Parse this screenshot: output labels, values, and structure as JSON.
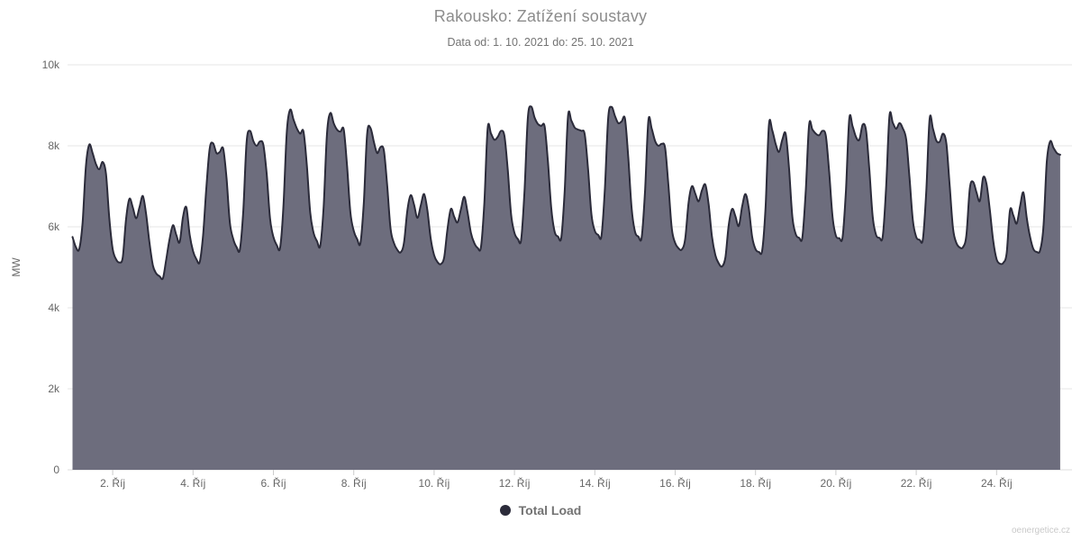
{
  "watermark": "oenergetice.cz",
  "chart_data": {
    "type": "area",
    "title": "Rakousko: Zatížení soustavy",
    "subtitle": "Data od: 1. 10. 2021 do: 25. 10. 2021",
    "xlabel": "",
    "ylabel": "MW",
    "ylim": [
      0,
      10000
    ],
    "grid": "horizontal",
    "colors": {
      "grid_line": "#e6e6e6",
      "axis_line": "#dcdcdc",
      "tick_mark": "#cccccc",
      "axis_label": "#666666",
      "area_fill": "#6d6d7d",
      "series_line": "#2b2b3a"
    },
    "yticks": [
      {
        "value": 0,
        "label": "0"
      },
      {
        "value": 2000,
        "label": "2k"
      },
      {
        "value": 4000,
        "label": "4k"
      },
      {
        "value": 6000,
        "label": "6k"
      },
      {
        "value": 8000,
        "label": "8k"
      },
      {
        "value": 10000,
        "label": "10k"
      }
    ],
    "xticks": [
      {
        "hour": 24,
        "label": "2. Říj"
      },
      {
        "hour": 72,
        "label": "4. Říj"
      },
      {
        "hour": 120,
        "label": "6. Říj"
      },
      {
        "hour": 168,
        "label": "8. Říj"
      },
      {
        "hour": 216,
        "label": "10. Říj"
      },
      {
        "hour": 264,
        "label": "12. Říj"
      },
      {
        "hour": 312,
        "label": "14. Říj"
      },
      {
        "hour": 360,
        "label": "16. Říj"
      },
      {
        "hour": 408,
        "label": "18. Říj"
      },
      {
        "hour": 456,
        "label": "20. Říj"
      },
      {
        "hour": 504,
        "label": "22. Říj"
      },
      {
        "hour": 552,
        "label": "24. Říj"
      }
    ],
    "legend": {
      "position": "bottom",
      "items": [
        {
          "label": "Total Load",
          "color": "#2b2b3a"
        }
      ]
    },
    "series": [
      {
        "name": "Total Load",
        "unit": "MW",
        "start": "1. 10. 2021 00:00",
        "end": "25. 10. 2021 14:00",
        "start_hour": 0,
        "interval_hours": 2,
        "color": "#2b2b3a",
        "fill_color": "#6d6d7d",
        "values": [
          5750,
          5500,
          5450,
          6100,
          7500,
          8030,
          7820,
          7550,
          7420,
          7600,
          7300,
          6200,
          5450,
          5200,
          5120,
          5250,
          6200,
          6690,
          6480,
          6210,
          6480,
          6760,
          6300,
          5600,
          5050,
          4850,
          4780,
          4730,
          5200,
          5700,
          6040,
          5800,
          5620,
          6250,
          6480,
          5800,
          5400,
          5200,
          5130,
          5800,
          7000,
          7950,
          8060,
          7820,
          7850,
          7930,
          7200,
          6100,
          5700,
          5500,
          5440,
          6400,
          8100,
          8370,
          8120,
          8000,
          8110,
          8020,
          7300,
          6200,
          5750,
          5550,
          5480,
          6500,
          8350,
          8890,
          8650,
          8430,
          8300,
          8350,
          7500,
          6350,
          5850,
          5650,
          5530,
          6500,
          8300,
          8810,
          8560,
          8400,
          8350,
          8400,
          7500,
          6350,
          5900,
          5700,
          5600,
          6600,
          8300,
          8440,
          8100,
          7820,
          7970,
          7880,
          7000,
          5950,
          5600,
          5430,
          5370,
          5600,
          6400,
          6780,
          6550,
          6220,
          6520,
          6810,
          6400,
          5700,
          5300,
          5130,
          5080,
          5250,
          5950,
          6440,
          6250,
          6110,
          6430,
          6740,
          6350,
          5850,
          5600,
          5480,
          5500,
          6600,
          8440,
          8300,
          8150,
          8220,
          8370,
          8240,
          7400,
          6300,
          5850,
          5700,
          5680,
          6900,
          8700,
          8970,
          8700,
          8540,
          8490,
          8480,
          7600,
          6450,
          5880,
          5760,
          5740,
          6900,
          8740,
          8620,
          8450,
          8400,
          8370,
          8280,
          7400,
          6300,
          5900,
          5800,
          5780,
          6950,
          8700,
          8960,
          8740,
          8560,
          8600,
          8670,
          7700,
          6450,
          5880,
          5760,
          5740,
          6900,
          8630,
          8420,
          8120,
          8000,
          8050,
          7940,
          7000,
          5950,
          5600,
          5470,
          5440,
          5700,
          6600,
          7000,
          6820,
          6630,
          6900,
          7040,
          6550,
          5750,
          5300,
          5100,
          5020,
          5250,
          6050,
          6440,
          6260,
          6020,
          6500,
          6810,
          6450,
          5750,
          5450,
          5380,
          5420,
          6500,
          8520,
          8380,
          8050,
          7850,
          8150,
          8300,
          7450,
          6250,
          5820,
          5730,
          5740,
          6900,
          8520,
          8400,
          8300,
          8260,
          8370,
          8240,
          7350,
          6250,
          5780,
          5720,
          5740,
          6900,
          8670,
          8480,
          8220,
          8150,
          8520,
          8380,
          7400,
          6250,
          5800,
          5730,
          5760,
          6950,
          8740,
          8570,
          8420,
          8560,
          8430,
          8150,
          7200,
          6150,
          5750,
          5680,
          5700,
          6900,
          8670,
          8420,
          8130,
          8100,
          8300,
          8050,
          7000,
          5950,
          5600,
          5490,
          5500,
          5800,
          6950,
          7110,
          6850,
          6640,
          7220,
          7050,
          6400,
          5650,
          5200,
          5090,
          5110,
          5350,
          6410,
          6280,
          6080,
          6500,
          6850,
          6220,
          5750,
          5450,
          5380,
          5420,
          6000,
          7600,
          8110,
          7950,
          7820,
          7780
        ]
      }
    ]
  }
}
